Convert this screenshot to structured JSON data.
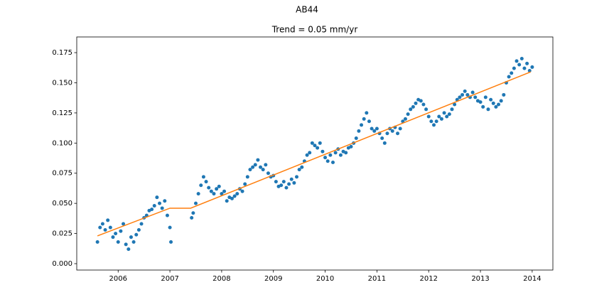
{
  "chart_data": {
    "type": "scatter",
    "suptitle": "AB44",
    "title": "Trend = 0.05 mm/yr",
    "xlim": [
      2005.2,
      2014.4
    ],
    "ylim": [
      -0.0053,
      0.188
    ],
    "xticks": [
      2006,
      2007,
      2008,
      2009,
      2010,
      2011,
      2012,
      2013,
      2014
    ],
    "yticks": [
      {
        "value": 0,
        "label": "0.000"
      },
      {
        "value": 0.025,
        "label": "0.025"
      },
      {
        "value": 0.05,
        "label": "0.050"
      },
      {
        "value": 0.075,
        "label": "0.075"
      },
      {
        "value": 0.1,
        "label": "0.100"
      },
      {
        "value": 0.125,
        "label": "0.125"
      },
      {
        "value": 0.15,
        "label": "0.150"
      },
      {
        "value": 0.175,
        "label": "0.175"
      }
    ],
    "series": [
      {
        "type": "scatter",
        "color": "#1f77b4",
        "x": [
          2005.6,
          2005.65,
          2005.7,
          2005.75,
          2005.8,
          2005.85,
          2005.9,
          2005.95,
          2006,
          2006.05,
          2006.1,
          2006.15,
          2006.2,
          2006.25,
          2006.3,
          2006.35,
          2006.4,
          2006.45,
          2006.5,
          2006.55,
          2006.6,
          2006.65,
          2006.7,
          2006.75,
          2006.8,
          2006.85,
          2006.9,
          2006.95,
          2007,
          2007.02,
          2007.42,
          2007.45,
          2007.5,
          2007.55,
          2007.6,
          2007.65,
          2007.7,
          2007.75,
          2007.8,
          2007.85,
          2007.9,
          2007.95,
          2008,
          2008.05,
          2008.1,
          2008.15,
          2008.2,
          2008.25,
          2008.3,
          2008.35,
          2008.4,
          2008.45,
          2008.5,
          2008.55,
          2008.6,
          2008.65,
          2008.7,
          2008.75,
          2008.8,
          2008.85,
          2008.9,
          2008.95,
          2009,
          2009.05,
          2009.1,
          2009.15,
          2009.2,
          2009.25,
          2009.3,
          2009.35,
          2009.4,
          2009.45,
          2009.5,
          2009.55,
          2009.6,
          2009.65,
          2009.7,
          2009.75,
          2009.8,
          2009.85,
          2009.9,
          2009.95,
          2010,
          2010.05,
          2010.1,
          2010.15,
          2010.2,
          2010.25,
          2010.3,
          2010.35,
          2010.4,
          2010.45,
          2010.5,
          2010.55,
          2010.6,
          2010.65,
          2010.7,
          2010.75,
          2010.8,
          2010.85,
          2010.9,
          2010.95,
          2011,
          2011.05,
          2011.1,
          2011.15,
          2011.2,
          2011.25,
          2011.3,
          2011.35,
          2011.4,
          2011.45,
          2011.5,
          2011.55,
          2011.6,
          2011.65,
          2011.7,
          2011.75,
          2011.8,
          2011.85,
          2011.9,
          2011.95,
          2012,
          2012.05,
          2012.1,
          2012.15,
          2012.2,
          2012.25,
          2012.3,
          2012.35,
          2012.4,
          2012.45,
          2012.5,
          2012.55,
          2012.6,
          2012.65,
          2012.7,
          2012.75,
          2012.8,
          2012.85,
          2012.9,
          2012.95,
          2013,
          2013.05,
          2013.1,
          2013.15,
          2013.2,
          2013.25,
          2013.3,
          2013.35,
          2013.4,
          2013.45,
          2013.5,
          2013.55,
          2013.6,
          2013.65,
          2013.7,
          2013.75,
          2013.8,
          2013.85,
          2013.9,
          2013.95,
          2014
        ],
        "values": [
          0.018,
          0.03,
          0.033,
          0.028,
          0.036,
          0.03,
          0.022,
          0.025,
          0.018,
          0.027,
          0.033,
          0.016,
          0.012,
          0.022,
          0.018,
          0.024,
          0.028,
          0.033,
          0.038,
          0.04,
          0.044,
          0.045,
          0.048,
          0.055,
          0.05,
          0.046,
          0.052,
          0.04,
          0.03,
          0.018,
          0.038,
          0.042,
          0.05,
          0.058,
          0.065,
          0.072,
          0.068,
          0.063,
          0.06,
          0.058,
          0.062,
          0.064,
          0.058,
          0.06,
          0.052,
          0.055,
          0.054,
          0.056,
          0.058,
          0.062,
          0.06,
          0.066,
          0.072,
          0.078,
          0.08,
          0.082,
          0.086,
          0.08,
          0.078,
          0.082,
          0.075,
          0.072,
          0.073,
          0.068,
          0.064,
          0.065,
          0.068,
          0.063,
          0.066,
          0.07,
          0.067,
          0.072,
          0.078,
          0.08,
          0.085,
          0.09,
          0.092,
          0.1,
          0.098,
          0.096,
          0.1,
          0.093,
          0.088,
          0.085,
          0.09,
          0.084,
          0.092,
          0.095,
          0.09,
          0.093,
          0.092,
          0.096,
          0.097,
          0.1,
          0.104,
          0.11,
          0.115,
          0.12,
          0.125,
          0.118,
          0.112,
          0.11,
          0.112,
          0.108,
          0.104,
          0.1,
          0.108,
          0.112,
          0.11,
          0.113,
          0.108,
          0.112,
          0.118,
          0.12,
          0.124,
          0.128,
          0.13,
          0.133,
          0.136,
          0.135,
          0.132,
          0.128,
          0.122,
          0.118,
          0.115,
          0.118,
          0.122,
          0.12,
          0.125,
          0.122,
          0.124,
          0.128,
          0.132,
          0.136,
          0.138,
          0.14,
          0.143,
          0.14,
          0.138,
          0.142,
          0.138,
          0.135,
          0.134,
          0.13,
          0.138,
          0.128,
          0.136,
          0.133,
          0.13,
          0.132,
          0.135,
          0.14,
          0.15,
          0.155,
          0.158,
          0.162,
          0.168,
          0.165,
          0.17,
          0.162,
          0.166,
          0.16,
          0.163
        ]
      },
      {
        "type": "line",
        "color": "#ff7f0e",
        "x": [
          2005.6,
          2007.0,
          2007.4,
          2013.97
        ],
        "values": [
          0.023,
          0.046,
          0.046,
          0.159
        ]
      }
    ]
  }
}
